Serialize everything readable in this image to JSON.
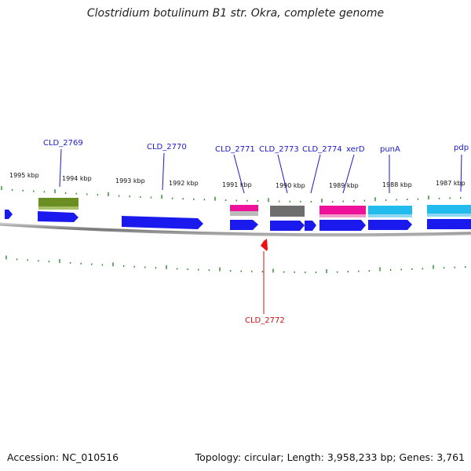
{
  "title": "Clostridium botulinum B1 str. Okra, complete genome",
  "accession": "Accession: NC_010516",
  "summary": "Topology: circular; Length: 3,958,233 bp; Genes: 3,761",
  "scale_labels": [
    "1995 kbp",
    "1994 kbp",
    "1993 kbp",
    "1992 kbp",
    "1991 kbp",
    "1990 kbp",
    "1989 kbp",
    "1988 kbp",
    "1987 kbp"
  ],
  "gene_labels": [
    "CLD_2769",
    "CLD_2770",
    "CLD_2771",
    "CLD_2773",
    "CLD_2774",
    "xerD",
    "punA",
    "pdp",
    "CLD_2772"
  ],
  "colors": {
    "cds": "#1a1aee",
    "reverse_cds": "#ee1111",
    "tick": "#2a8a2a",
    "backbone": "#888888",
    "label_blue": "#1a1acc",
    "label_red": "#cc1111",
    "olive": "#6b8e23",
    "magenta": "#ee1199",
    "gray": "#6e6e6e",
    "cyan": "#22bbee"
  }
}
